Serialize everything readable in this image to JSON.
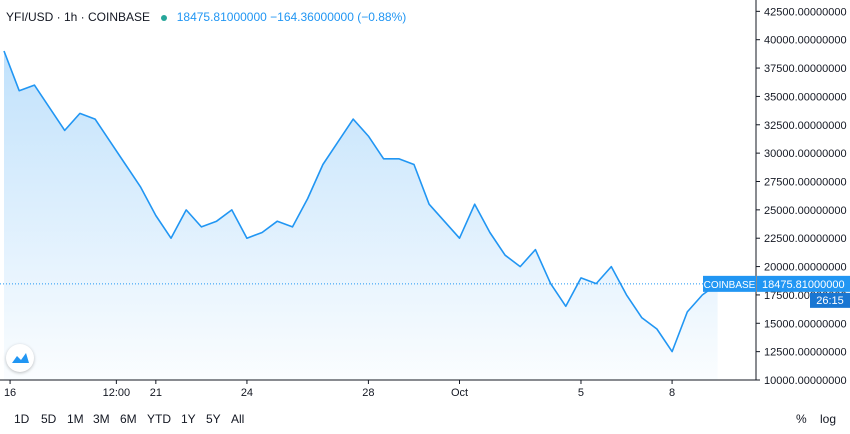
{
  "header": {
    "symbol_line": "YFI/USD · 1h · COINBASE",
    "values_line": "18475.81000000  −164.36000000 (−0.88%)"
  },
  "price_tag": {
    "exchange": "COINBASE",
    "price": "18475.81000000",
    "countdown": "26:15"
  },
  "timeframes": [
    "1D",
    "5D",
    "1M",
    "3M",
    "6M",
    "YTD",
    "1Y",
    "5Y",
    "All"
  ],
  "scale_options": [
    "%",
    "log"
  ],
  "colors": {
    "line": "#2196f3",
    "area_top": "#2196f3",
    "price_tag_bg": "#2196f3",
    "countdown_bg": "#1976d2",
    "axis": "#131722"
  },
  "icons": [
    "tradingview-logo-icon"
  ],
  "chart_data": {
    "type": "area",
    "title": "YFI/USD · 1h · COINBASE",
    "y_ticks": [
      "42500.00000000",
      "40000.00000000",
      "37500.00000000",
      "35000.00000000",
      "32500.00000000",
      "30000.00000000",
      "27500.00000000",
      "25000.00000000",
      "22500.00000000",
      "20000.00000000",
      "17500.00000000",
      "15000.00000000",
      "12500.00000000",
      "10000.00000000"
    ],
    "ylim": [
      10000,
      43500
    ],
    "x_ticks": [
      "16",
      "12:00",
      "21",
      "24",
      "28",
      "Oct",
      "5",
      "8"
    ],
    "x_tick_positions": [
      0.2,
      3.7,
      5.0,
      8.0,
      12.0,
      15.0,
      19.0,
      22.0
    ],
    "xlim": [
      0,
      24.5
    ],
    "last_price": 18475.81,
    "grid": false,
    "series": [
      {
        "x": [
          0,
          0.5,
          1.0,
          1.5,
          2.0,
          2.5,
          3.0,
          3.5,
          4.0,
          4.5,
          5.0,
          5.5,
          6.0,
          6.5,
          7.0,
          7.5,
          8.0,
          8.5,
          9.0,
          9.5,
          10.0,
          10.5,
          11.0,
          11.5,
          12.0,
          12.5,
          13.0,
          13.5,
          14.0,
          14.5,
          15.0,
          15.5,
          16.0,
          16.5,
          17.0,
          17.5,
          18.0,
          18.5,
          19.0,
          19.5,
          20.0,
          20.5,
          21.0,
          21.5,
          22.0,
          22.5,
          23.0,
          23.5
        ],
        "values": [
          39000,
          35500,
          36000,
          34000,
          32000,
          33500,
          33000,
          31000,
          29000,
          27000,
          24500,
          22500,
          25000,
          23500,
          24000,
          25000,
          22500,
          23000,
          24000,
          23500,
          26000,
          29000,
          31000,
          33000,
          31500,
          29500,
          29500,
          29000,
          25500,
          24000,
          22500,
          25500,
          23000,
          21000,
          20000,
          21500,
          18500,
          16500,
          19000,
          18500,
          20000,
          17500,
          15500,
          14500,
          12500,
          16000,
          17500,
          18475.81
        ]
      }
    ]
  }
}
